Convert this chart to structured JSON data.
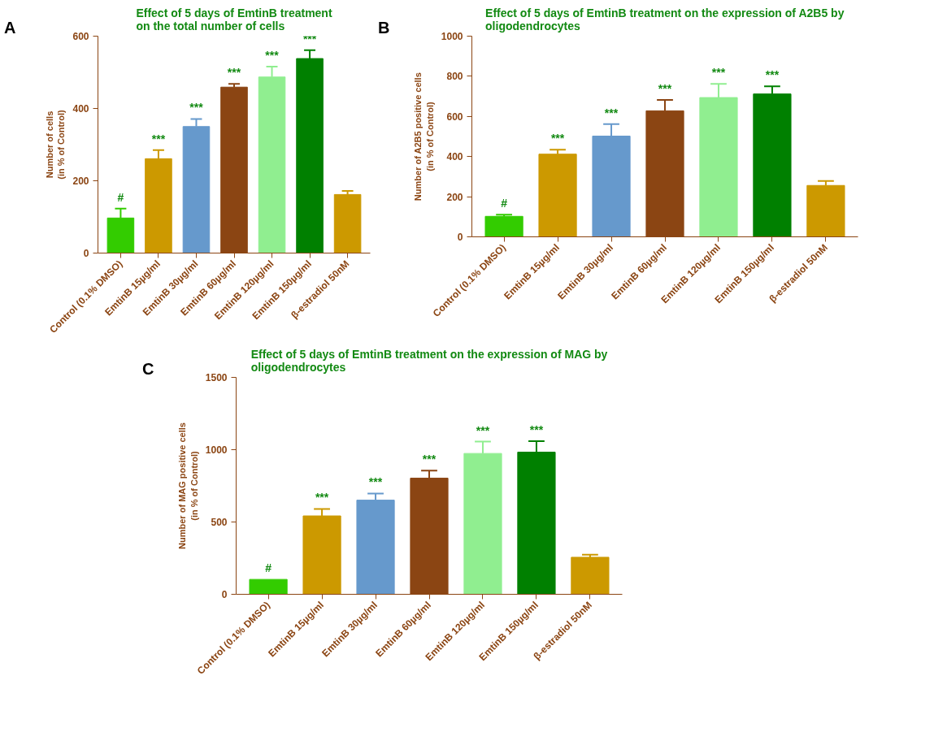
{
  "chart_data": [
    {
      "type": "bar",
      "title": "Effect of 5 days of EmtinB treatment\non the total number of cells",
      "ylabel": "Number of cells\n(in % of Control)",
      "categories": [
        "Control (0.1% DMSO)",
        "EmtinB 15µg/ml",
        "EmtinB 30µg/ml",
        "EmtinB 60µg/ml",
        "EmtinB 120µg/ml",
        "EmtinB 150µg/ml",
        "β-estradiol 50nM"
      ],
      "values": [
        97,
        261,
        350,
        459,
        487,
        538,
        162
      ],
      "colors": [
        "#33cc00",
        "#cc9900",
        "#6699cc",
        "#8b4513",
        "#90ee90",
        "#008000",
        "#cc9900"
      ],
      "errors": [
        [
          97,
          123
        ],
        [
          261,
          285
        ],
        [
          350,
          371
        ],
        [
          459,
          468
        ],
        [
          487,
          516
        ],
        [
          538,
          561
        ],
        [
          162,
          172
        ]
      ],
      "ylim": [
        0,
        600
      ],
      "yticks": [
        0,
        200,
        400,
        600
      ],
      "annotations": [
        "A",
        {
          "text": "#",
          "x": "Control (0.1% DMSO)",
          "y": 123
        },
        {
          "text": "***",
          "x": "EmtinB 15µg/ml",
          "y": 285
        },
        {
          "text": "***",
          "x": "EmtinB 30µg/ml",
          "y": 371
        },
        {
          "text": "***",
          "x": "EmtinB 60µg/ml",
          "y": 468
        },
        {
          "text": "***",
          "x": "EmtinB 120µg/ml",
          "y": 516
        },
        {
          "text": "***",
          "x": "EmtinB 150µg/ml",
          "y": 561
        }
      ]
    },
    {
      "type": "bar",
      "title": "Effect of 5 days of EmtinB treatment on the expression of A2B5 by\noligodendrocytes",
      "ylabel": "Number of A2B5 positive cells\n(in % of Control)",
      "categories": [
        "Control (0.1% DMSO)",
        "EmtinB 15µg/ml",
        "EmtinB 30µg/ml",
        "EmtinB 60µg/ml",
        "EmtinB 120µg/ml",
        "EmtinB 150µg/ml",
        "β-estradiol 50nM"
      ],
      "values": [
        102,
        412,
        502,
        628,
        694,
        712,
        256
      ],
      "colors": [
        "#33cc00",
        "#cc9900",
        "#6699cc",
        "#8b4513",
        "#90ee90",
        "#008000",
        "#cc9900"
      ],
      "errors": [
        [
          102,
          110
        ],
        [
          412,
          434
        ],
        [
          502,
          562
        ],
        [
          628,
          682
        ],
        [
          694,
          762
        ],
        [
          712,
          750
        ],
        [
          256,
          278
        ]
      ],
      "ylim": [
        0,
        1000
      ],
      "yticks": [
        0,
        200,
        400,
        600,
        800,
        1000
      ],
      "annotations": [
        "B",
        {
          "text": "#",
          "x": "Control (0.1% DMSO)",
          "y": 110
        },
        {
          "text": "***",
          "x": "EmtinB 15µg/ml",
          "y": 434
        },
        {
          "text": "***",
          "x": "EmtinB 30µg/ml",
          "y": 562
        },
        {
          "text": "***",
          "x": "EmtinB 60µg/ml",
          "y": 682
        },
        {
          "text": "***",
          "x": "EmtinB 120µg/ml",
          "y": 762
        },
        {
          "text": "***",
          "x": "EmtinB 150µg/ml",
          "y": 750
        }
      ]
    },
    {
      "type": "bar",
      "title": "Effect of 5 days of EmtinB treatment on the expression of MAG by\noligodendrocytes",
      "ylabel": "Number of MAG positive cells\n(in % of Control)",
      "categories": [
        "Control (0.1% DMSO)",
        "EmtinB 15µg/ml",
        "EmtinB 30µg/ml",
        "EmtinB 60µg/ml",
        "EmtinB 120µg/ml",
        "EmtinB 150µg/ml",
        "β-estradiol 50nM"
      ],
      "values": [
        103,
        542,
        651,
        803,
        974,
        983,
        256
      ],
      "colors": [
        "#33cc00",
        "#cc9900",
        "#6699cc",
        "#8b4513",
        "#90ee90",
        "#008000",
        "#cc9900"
      ],
      "errors": [
        null,
        [
          542,
          590
        ],
        [
          651,
          697
        ],
        [
          803,
          855
        ],
        [
          974,
          1056
        ],
        [
          983,
          1059
        ],
        [
          256,
          274
        ]
      ],
      "ylim": [
        0,
        1500
      ],
      "yticks": [
        0,
        500,
        1000,
        1500
      ],
      "annotations": [
        "C",
        {
          "text": "#",
          "x": "Control (0.1% DMSO)",
          "y": 103
        },
        {
          "text": "***",
          "x": "EmtinB 15µg/ml",
          "y": 590
        },
        {
          "text": "***",
          "x": "EmtinB 30µg/ml",
          "y": 697
        },
        {
          "text": "***",
          "x": "EmtinB 60µg/ml",
          "y": 855
        },
        {
          "text": "***",
          "x": "EmtinB 120µg/ml",
          "y": 1056
        },
        {
          "text": "***",
          "x": "EmtinB 150µg/ml",
          "y": 1059
        }
      ]
    }
  ]
}
